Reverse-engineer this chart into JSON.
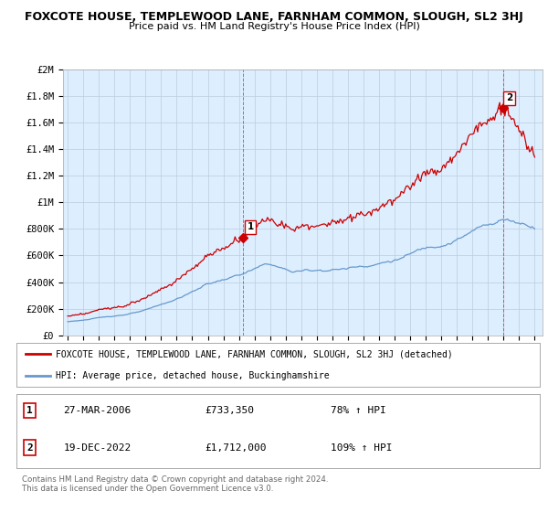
{
  "title": "FOXCOTE HOUSE, TEMPLEWOOD LANE, FARNHAM COMMON, SLOUGH, SL2 3HJ",
  "subtitle": "Price paid vs. HM Land Registry's House Price Index (HPI)",
  "ylim": [
    0,
    2000000
  ],
  "yticks": [
    0,
    200000,
    400000,
    600000,
    800000,
    1000000,
    1200000,
    1400000,
    1600000,
    1800000,
    2000000
  ],
  "ytick_labels": [
    "£0",
    "£200K",
    "£400K",
    "£600K",
    "£800K",
    "£1M",
    "£1.2M",
    "£1.4M",
    "£1.6M",
    "£1.8M",
    "£2M"
  ],
  "sale1_date": 2006.23,
  "sale1_price": 733350,
  "sale2_date": 2022.97,
  "sale2_price": 1712000,
  "house_color": "#cc0000",
  "hpi_color": "#6699cc",
  "chart_bg": "#ddeeff",
  "background_color": "#ffffff",
  "grid_color": "#bbccdd",
  "legend_house": "FOXCOTE HOUSE, TEMPLEWOOD LANE, FARNHAM COMMON, SLOUGH, SL2 3HJ (detached)",
  "legend_hpi": "HPI: Average price, detached house, Buckinghamshire",
  "note1_date": "27-MAR-2006",
  "note1_price": "£733,350",
  "note1_hpi": "78% ↑ HPI",
  "note2_date": "19-DEC-2022",
  "note2_price": "£1,712,000",
  "note2_hpi": "109% ↑ HPI",
  "footer": "Contains HM Land Registry data © Crown copyright and database right 2024.\nThis data is licensed under the Open Government Licence v3.0."
}
